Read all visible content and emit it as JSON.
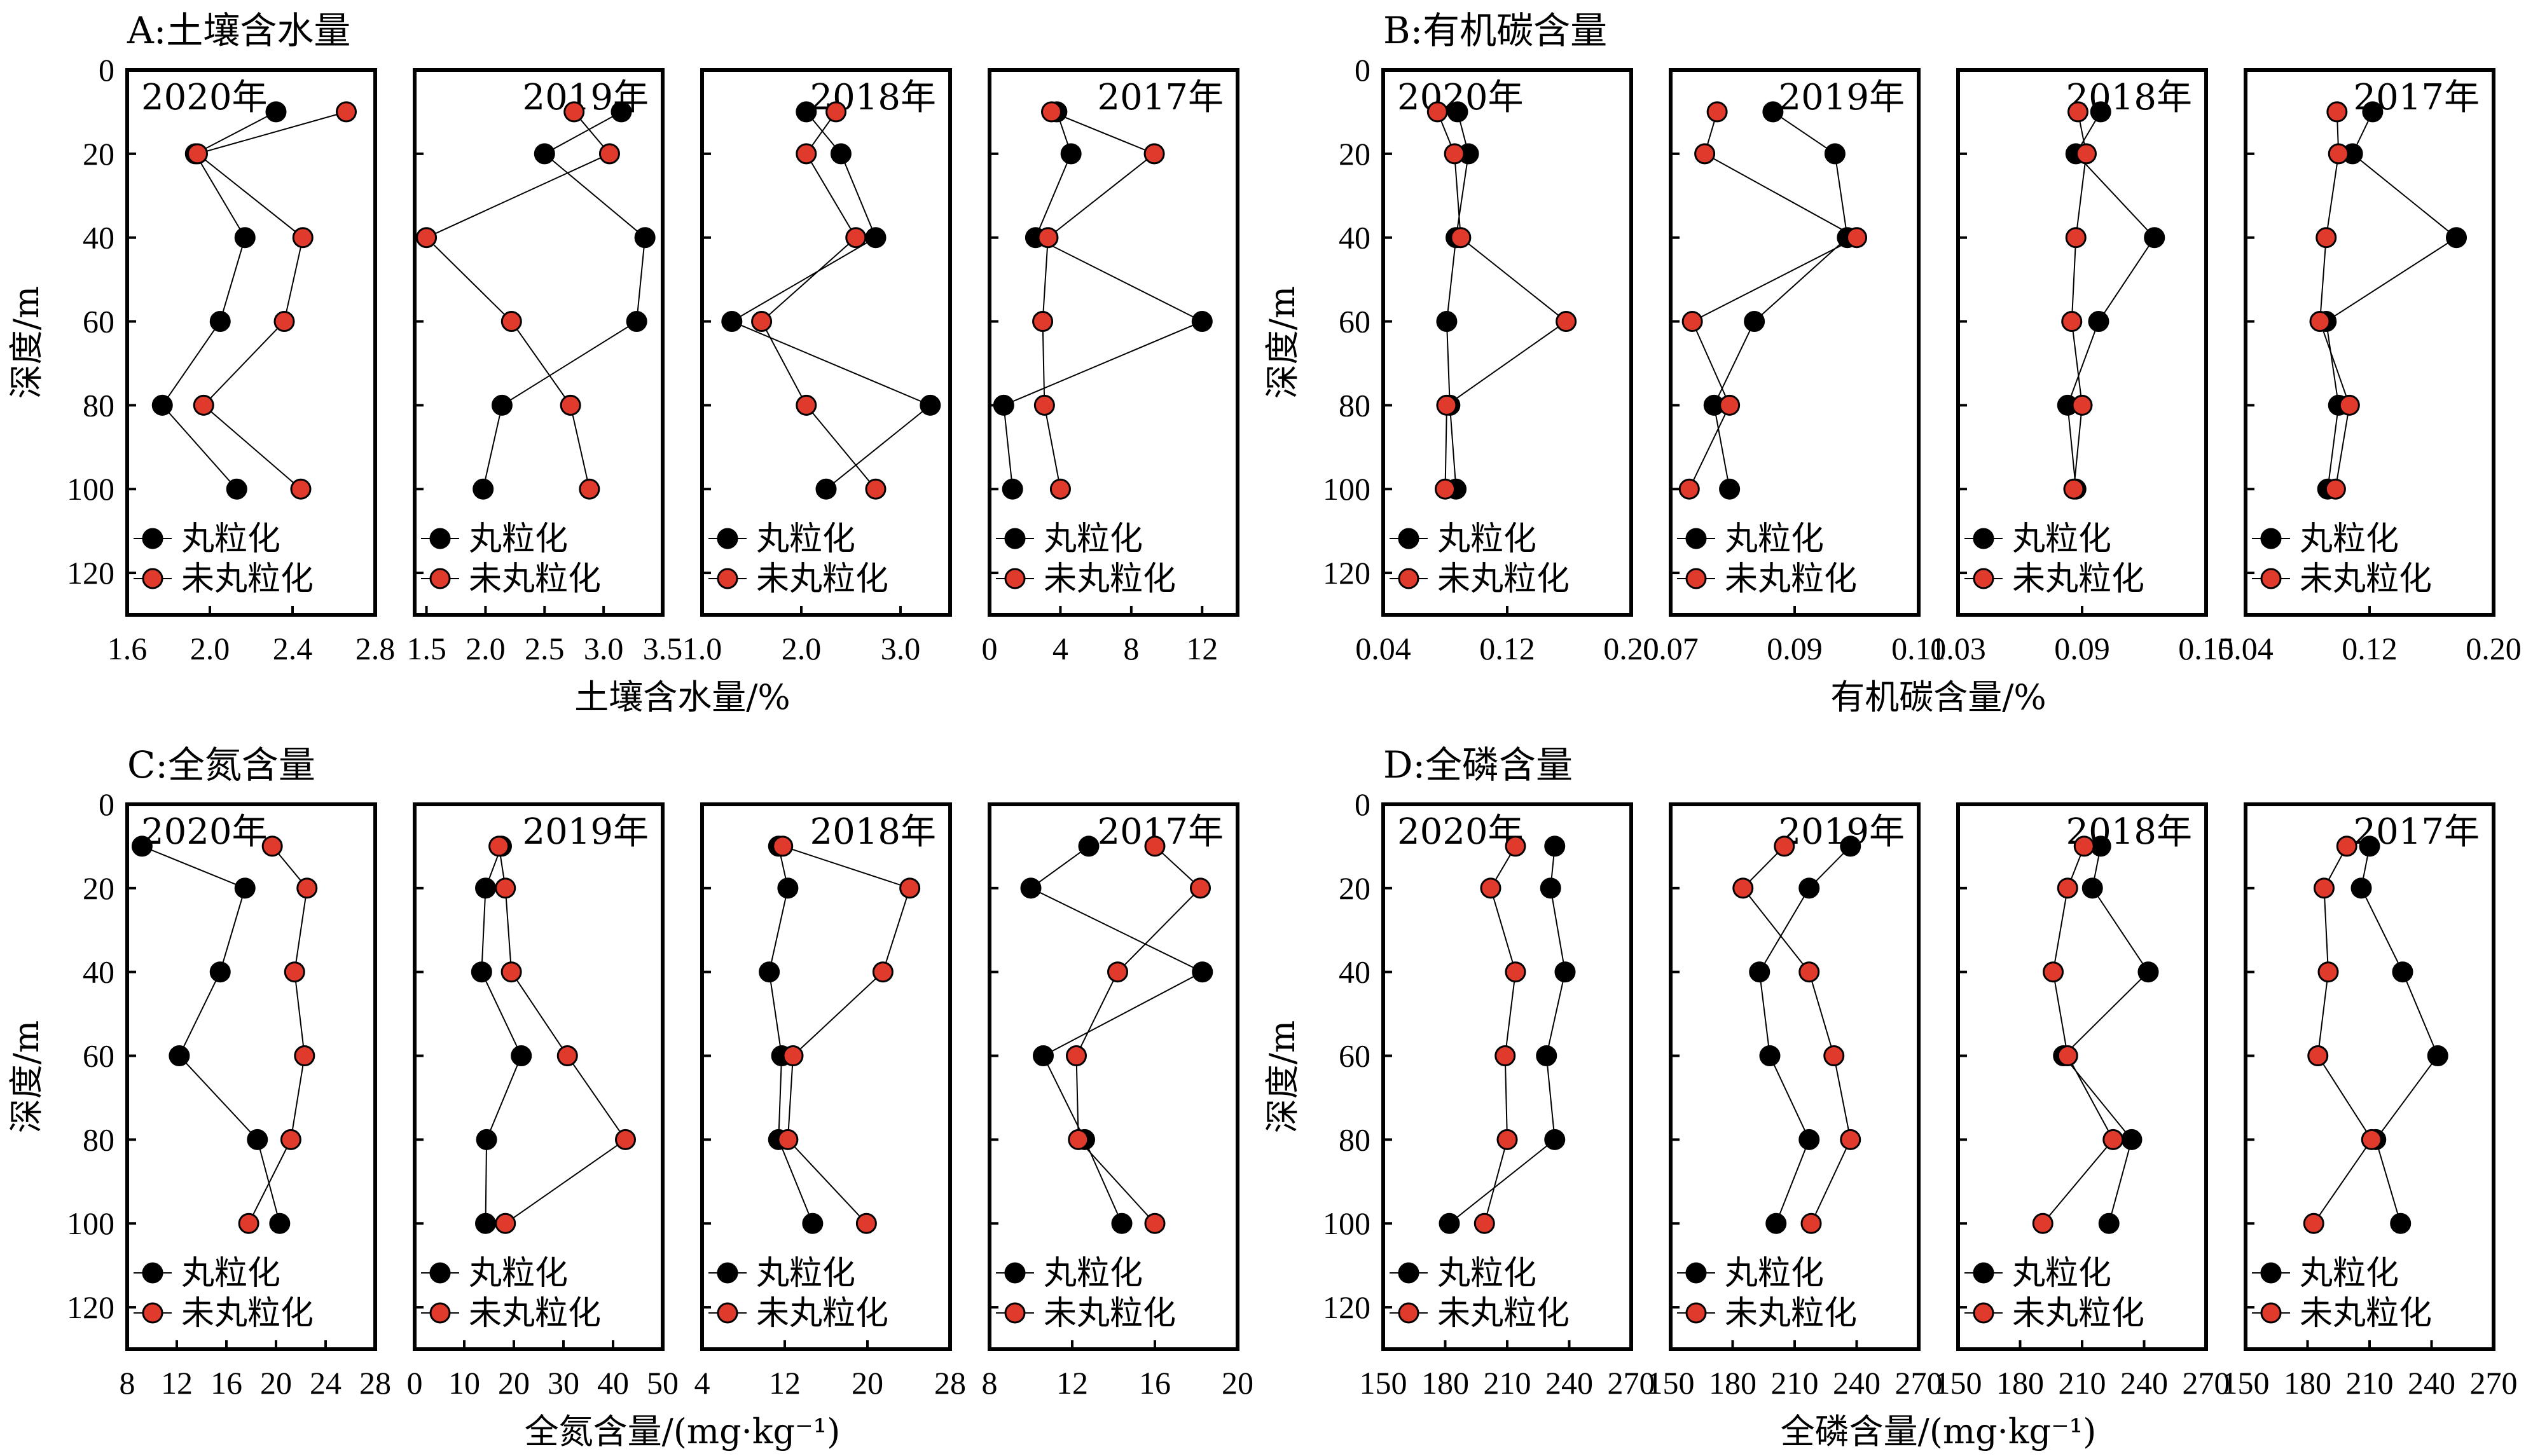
{
  "colors": {
    "granulated": "#000000",
    "non_granulated": "#e03a2c",
    "outline": "#000000"
  },
  "chart_data": [
    {
      "type": "scatter",
      "panel_title": "A:土壤含水量",
      "xlabel": "土壤含水量/%",
      "ylabel": "深度/m",
      "y_ticks": [
        "0",
        "20",
        "40",
        "60",
        "80",
        "100",
        "120"
      ],
      "ylim": [
        0,
        130
      ],
      "legend": [
        "丸粒化",
        "未丸粒化"
      ],
      "subplots": [
        {
          "year": "2020年",
          "xlim": [
            1.6,
            2.8
          ],
          "x_tick_values": [
            1.6,
            2.0,
            2.4,
            2.8
          ],
          "x_tick_labels": [
            "1.6",
            "2.0",
            "2.4",
            "2.8"
          ],
          "depths": [
            10,
            20,
            40,
            60,
            80,
            100
          ],
          "series": [
            {
              "name": "丸粒化",
              "values": [
                2.32,
                1.93,
                2.17,
                2.05,
                1.77,
                2.13
              ]
            },
            {
              "name": "未丸粒化",
              "values": [
                2.66,
                1.94,
                2.45,
                2.36,
                1.97,
                2.44
              ]
            }
          ]
        },
        {
          "year": "2019年",
          "xlim": [
            1.4,
            3.5
          ],
          "x_tick_values": [
            1.5,
            2.0,
            2.5,
            3.0,
            3.5
          ],
          "x_tick_labels": [
            "1.5",
            "2.0",
            "2.5",
            "3.0",
            "3.5"
          ],
          "depths": [
            10,
            20,
            40,
            60,
            80,
            100
          ],
          "series": [
            {
              "name": "丸粒化",
              "values": [
                3.15,
                2.5,
                3.35,
                3.28,
                2.14,
                1.98
              ]
            },
            {
              "name": "未丸粒化",
              "values": [
                2.75,
                3.05,
                1.5,
                2.22,
                2.72,
                2.88
              ]
            }
          ]
        },
        {
          "year": "2018年",
          "xlim": [
            1.0,
            3.5
          ],
          "x_tick_values": [
            1.0,
            2.0,
            3.0
          ],
          "x_tick_labels": [
            "1.0",
            "2.0",
            "3.0"
          ],
          "depths": [
            10,
            20,
            40,
            60,
            80,
            100
          ],
          "series": [
            {
              "name": "丸粒化",
              "values": [
                2.05,
                2.4,
                2.75,
                1.3,
                3.3,
                2.25
              ]
            },
            {
              "name": "未丸粒化",
              "values": [
                2.35,
                2.05,
                2.55,
                1.6,
                2.05,
                2.75
              ]
            }
          ]
        },
        {
          "year": "2017年",
          "xlim": [
            0,
            14
          ],
          "x_tick_values": [
            0,
            4,
            8,
            12
          ],
          "x_tick_labels": [
            "0",
            "4",
            "8",
            "12"
          ],
          "depths": [
            10,
            20,
            40,
            60,
            80,
            100
          ],
          "series": [
            {
              "name": "丸粒化",
              "values": [
                3.8,
                4.6,
                2.6,
                12.0,
                0.8,
                1.3
              ]
            },
            {
              "name": "未丸粒化",
              "values": [
                3.5,
                9.3,
                3.3,
                3.0,
                3.1,
                4.0
              ]
            }
          ]
        }
      ]
    },
    {
      "type": "scatter",
      "panel_title": "B:有机碳含量",
      "xlabel": "有机碳含量/%",
      "ylabel": "深度/m",
      "y_ticks": [
        "0",
        "20",
        "40",
        "60",
        "80",
        "100",
        "120"
      ],
      "ylim": [
        0,
        130
      ],
      "legend": [
        "丸粒化",
        "未丸粒化"
      ],
      "subplots": [
        {
          "year": "2020年",
          "xlim": [
            0.04,
            0.2
          ],
          "x_tick_values": [
            0.04,
            0.12,
            0.2
          ],
          "x_tick_labels": [
            "0.04",
            "0.12",
            "0.20"
          ],
          "depths": [
            10,
            20,
            40,
            60,
            80,
            100
          ],
          "series": [
            {
              "name": "丸粒化",
              "values": [
                0.088,
                0.095,
                0.087,
                0.081,
                0.083,
                0.087
              ]
            },
            {
              "name": "未丸粒化",
              "values": [
                0.075,
                0.086,
                0.09,
                0.158,
                0.081,
                0.08
              ]
            }
          ]
        },
        {
          "year": "2019年",
          "xlim": [
            0.07,
            0.11
          ],
          "x_tick_values": [
            0.07,
            0.09,
            0.11
          ],
          "x_tick_labels": [
            "0.07",
            "0.09",
            "0.11"
          ],
          "depths": [
            10,
            20,
            40,
            60,
            80,
            100
          ],
          "series": [
            {
              "name": "丸粒化",
              "values": [
                0.0865,
                0.0965,
                0.0985,
                0.0835,
                0.077,
                0.0795
              ]
            },
            {
              "name": "未丸粒化",
              "values": [
                0.0775,
                0.0755,
                0.1,
                0.0735,
                0.0795,
                0.073
              ]
            }
          ]
        },
        {
          "year": "2018年",
          "xlim": [
            0.03,
            0.15
          ],
          "x_tick_values": [
            0.03,
            0.09,
            0.15
          ],
          "x_tick_labels": [
            "0.03",
            "0.09",
            "0.15"
          ],
          "depths": [
            10,
            20,
            40,
            60,
            80,
            100
          ],
          "series": [
            {
              "name": "丸粒化",
              "values": [
                0.099,
                0.087,
                0.125,
                0.098,
                0.083,
                0.087
              ]
            },
            {
              "name": "未丸粒化",
              "values": [
                0.088,
                0.092,
                0.087,
                0.085,
                0.09,
                0.086
              ]
            }
          ]
        },
        {
          "year": "2017年",
          "xlim": [
            0.04,
            0.2
          ],
          "x_tick_values": [
            0.04,
            0.12,
            0.2
          ],
          "x_tick_labels": [
            "0.04",
            "0.12",
            "0.20"
          ],
          "depths": [
            10,
            20,
            40,
            60,
            80,
            100
          ],
          "series": [
            {
              "name": "丸粒化",
              "values": [
                0.122,
                0.109,
                0.176,
                0.092,
                0.1,
                0.093
              ]
            },
            {
              "name": "未丸粒化",
              "values": [
                0.099,
                0.1,
                0.092,
                0.088,
                0.107,
                0.098
              ]
            }
          ]
        }
      ]
    },
    {
      "type": "scatter",
      "panel_title": "C:全氮含量",
      "xlabel": "全氮含量/(mg·kg⁻¹)",
      "ylabel": "深度/m",
      "y_ticks": [
        "0",
        "20",
        "40",
        "60",
        "80",
        "100",
        "120"
      ],
      "ylim": [
        0,
        130
      ],
      "legend": [
        "丸粒化",
        "未丸粒化"
      ],
      "subplots": [
        {
          "year": "2020年",
          "xlim": [
            8,
            28
          ],
          "x_tick_values": [
            8,
            12,
            16,
            20,
            24,
            28
          ],
          "x_tick_labels": [
            "8",
            "12",
            "16",
            "20",
            "24",
            "28"
          ],
          "depths": [
            10,
            20,
            40,
            60,
            80,
            100
          ],
          "series": [
            {
              "name": "丸粒化",
              "values": [
                9.2,
                17.5,
                15.5,
                12.2,
                18.5,
                20.3
              ]
            },
            {
              "name": "未丸粒化",
              "values": [
                19.7,
                22.5,
                21.5,
                22.3,
                21.2,
                17.8
              ]
            }
          ]
        },
        {
          "year": "2019年",
          "xlim": [
            0,
            50
          ],
          "x_tick_values": [
            0,
            10,
            20,
            30,
            40,
            50
          ],
          "x_tick_labels": [
            "0",
            "10",
            "20",
            "30",
            "40",
            "50"
          ],
          "depths": [
            10,
            20,
            40,
            60,
            80,
            100
          ],
          "series": [
            {
              "name": "丸粒化",
              "values": [
                17.5,
                14.3,
                13.5,
                21.5,
                14.5,
                14.3
              ]
            },
            {
              "name": "未丸粒化",
              "values": [
                17.0,
                18.3,
                19.5,
                30.8,
                42.5,
                18.3
              ]
            }
          ]
        },
        {
          "year": "2018年",
          "xlim": [
            4,
            28
          ],
          "x_tick_values": [
            4,
            12,
            20,
            28
          ],
          "x_tick_labels": [
            "4",
            "12",
            "20",
            "28"
          ],
          "depths": [
            10,
            20,
            40,
            60,
            80,
            100
          ],
          "series": [
            {
              "name": "丸粒化",
              "values": [
                11.4,
                12.3,
                10.5,
                11.7,
                11.4,
                14.7
              ]
            },
            {
              "name": "未丸粒化",
              "values": [
                11.8,
                24.1,
                21.5,
                12.8,
                12.3,
                19.9
              ]
            }
          ]
        },
        {
          "year": "2017年",
          "xlim": [
            8,
            20
          ],
          "x_tick_values": [
            8,
            12,
            16,
            20
          ],
          "x_tick_labels": [
            "8",
            "12",
            "16",
            "20"
          ],
          "depths": [
            10,
            20,
            40,
            60,
            80,
            100
          ],
          "series": [
            {
              "name": "丸粒化",
              "values": [
                12.8,
                10.0,
                18.3,
                10.6,
                12.6,
                14.4
              ]
            },
            {
              "name": "未丸粒化",
              "values": [
                16.0,
                18.2,
                14.2,
                12.2,
                12.3,
                16.0
              ]
            }
          ]
        }
      ]
    },
    {
      "type": "scatter",
      "panel_title": "D:全磷含量",
      "xlabel": "全磷含量/(mg·kg⁻¹)",
      "ylabel": "深度/m",
      "y_ticks": [
        "0",
        "20",
        "40",
        "60",
        "80",
        "100",
        "120"
      ],
      "ylim": [
        0,
        130
      ],
      "legend": [
        "丸粒化",
        "未丸粒化"
      ],
      "subplots": [
        {
          "year": "2020年",
          "xlim": [
            150,
            270
          ],
          "x_tick_values": [
            150,
            180,
            210,
            240,
            270
          ],
          "x_tick_labels": [
            "150",
            "180",
            "210",
            "240",
            "270"
          ],
          "depths": [
            10,
            20,
            40,
            60,
            80,
            100
          ],
          "series": [
            {
              "name": "丸粒化",
              "values": [
                233,
                231,
                238,
                229,
                233,
                182
              ]
            },
            {
              "name": "未丸粒化",
              "values": [
                214,
                202,
                214,
                209,
                210,
                199
              ]
            }
          ]
        },
        {
          "year": "2019年",
          "xlim": [
            150,
            270
          ],
          "x_tick_values": [
            150,
            180,
            210,
            240,
            270
          ],
          "x_tick_labels": [
            "150",
            "180",
            "210",
            "240",
            "270"
          ],
          "depths": [
            10,
            20,
            40,
            60,
            80,
            100
          ],
          "series": [
            {
              "name": "丸粒化",
              "values": [
                237,
                217,
                193,
                198,
                217,
                201
              ]
            },
            {
              "name": "未丸粒化",
              "values": [
                205,
                185,
                217,
                229,
                237,
                218
              ]
            }
          ]
        },
        {
          "year": "2018年",
          "xlim": [
            150,
            270
          ],
          "x_tick_values": [
            150,
            180,
            210,
            240,
            270
          ],
          "x_tick_labels": [
            "150",
            "180",
            "210",
            "240",
            "270"
          ],
          "depths": [
            10,
            20,
            40,
            60,
            80,
            100
          ],
          "series": [
            {
              "name": "丸粒化",
              "values": [
                219,
                215,
                242,
                201,
                234,
                223
              ]
            },
            {
              "name": "未丸粒化",
              "values": [
                211,
                203,
                196,
                203,
                225,
                191
              ]
            }
          ]
        },
        {
          "year": "2017年",
          "xlim": [
            150,
            270
          ],
          "x_tick_values": [
            150,
            180,
            210,
            240,
            270
          ],
          "x_tick_labels": [
            "150",
            "180",
            "210",
            "240",
            "270"
          ],
          "depths": [
            10,
            20,
            40,
            60,
            80,
            100
          ],
          "series": [
            {
              "name": "丸粒化",
              "values": [
                210,
                206,
                226,
                243,
                213,
                225
              ]
            },
            {
              "name": "未丸粒化",
              "values": [
                199,
                188,
                190,
                185,
                211,
                183
              ]
            }
          ]
        }
      ]
    }
  ]
}
